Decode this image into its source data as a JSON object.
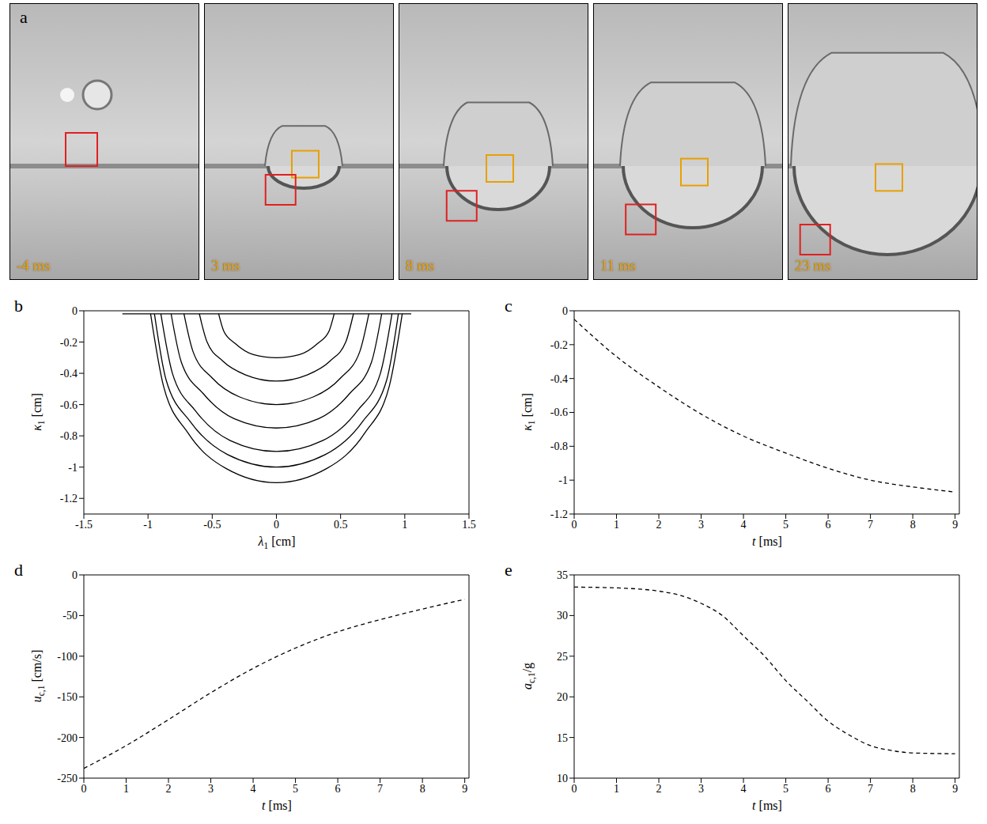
{
  "figure_a": {
    "panel": "a",
    "frames": [
      "-4 ms",
      "3 ms",
      "8 ms",
      "11 ms",
      "23 ms"
    ]
  },
  "chart_data": [
    {
      "panel": "b",
      "type": "line",
      "x_label": "λ1 [cm]",
      "y_label": "κ1 [cm]",
      "color": "#000000",
      "line_style": "solid",
      "xlim": [
        -1.5,
        1.5
      ],
      "xticks": [
        -1.5,
        -1,
        -0.5,
        0,
        0.5,
        1,
        1.5
      ],
      "ylim": [
        -1.3,
        0
      ],
      "yticks": [
        -1.2,
        -1,
        -0.8,
        -0.6,
        -0.4,
        -0.2,
        0
      ],
      "series": [
        {
          "x": [
            -1.2,
            1.05
          ],
          "values": [
            -0.02,
            -0.02
          ]
        },
        {
          "x": [
            -0.45,
            -0.41,
            -0.32,
            -0.18,
            0,
            0.18,
            0.32,
            0.41,
            0.45
          ],
          "values": [
            -0.02,
            -0.13,
            -0.21,
            -0.28,
            -0.3,
            -0.28,
            -0.21,
            -0.13,
            -0.02
          ]
        },
        {
          "x": [
            -0.6,
            -0.54,
            -0.42,
            -0.24,
            0,
            0.24,
            0.42,
            0.54,
            0.6
          ],
          "values": [
            -0.02,
            -0.2,
            -0.32,
            -0.41,
            -0.45,
            -0.41,
            -0.32,
            -0.2,
            -0.02
          ]
        },
        {
          "x": [
            -0.72,
            -0.65,
            -0.5,
            -0.29,
            0,
            0.29,
            0.5,
            0.65,
            0.72
          ],
          "values": [
            -0.02,
            -0.26,
            -0.43,
            -0.55,
            -0.6,
            -0.55,
            -0.43,
            -0.26,
            -0.02
          ]
        },
        {
          "x": [
            -0.82,
            -0.74,
            -0.57,
            -0.33,
            0,
            0.33,
            0.57,
            0.74,
            0.82
          ],
          "values": [
            -0.02,
            -0.33,
            -0.53,
            -0.69,
            -0.75,
            -0.69,
            -0.53,
            -0.33,
            -0.02
          ]
        },
        {
          "x": [
            -0.9,
            -0.81,
            -0.63,
            -0.36,
            0,
            0.36,
            0.63,
            0.81,
            0.9
          ],
          "values": [
            -0.02,
            -0.4,
            -0.64,
            -0.83,
            -0.9,
            -0.83,
            -0.64,
            -0.4,
            -0.02
          ]
        },
        {
          "x": [
            -0.95,
            -0.86,
            -0.67,
            -0.38,
            0,
            0.38,
            0.67,
            0.86,
            0.95
          ],
          "values": [
            -0.02,
            -0.44,
            -0.71,
            -0.92,
            -1.0,
            -0.92,
            -0.71,
            -0.44,
            -0.02
          ]
        },
        {
          "x": [
            -0.98,
            -0.88,
            -0.69,
            -0.39,
            0,
            0.39,
            0.69,
            0.88,
            0.98
          ],
          "values": [
            -0.02,
            -0.48,
            -0.78,
            -1.01,
            -1.1,
            -1.01,
            -0.78,
            -0.48,
            -0.02
          ]
        }
      ]
    },
    {
      "panel": "c",
      "type": "line",
      "x_label": "t [ms]",
      "y_label": "κ1 [cm]",
      "color": "#000000",
      "line_style": "dashed",
      "xlim": [
        0,
        9.1
      ],
      "xticks": [
        0,
        1,
        2,
        3,
        4,
        5,
        6,
        7,
        8,
        9
      ],
      "ylim": [
        -1.2,
        0
      ],
      "yticks": [
        -1.2,
        -1,
        -0.8,
        -0.6,
        -0.4,
        -0.2,
        0
      ],
      "x": [
        0,
        1,
        2,
        3,
        4,
        5,
        6,
        7,
        8,
        9
      ],
      "values": [
        -0.05,
        -0.27,
        -0.45,
        -0.61,
        -0.74,
        -0.84,
        -0.93,
        -1.0,
        -1.04,
        -1.07
      ]
    },
    {
      "panel": "d",
      "type": "line",
      "x_label": "t [ms]",
      "y_label": "uc,1 [cm/s]",
      "color": "#000000",
      "line_style": "dashed",
      "xlim": [
        0,
        9.1
      ],
      "xticks": [
        0,
        1,
        2,
        3,
        4,
        5,
        6,
        7,
        8,
        9
      ],
      "ylim": [
        -250,
        0
      ],
      "yticks": [
        -250,
        -200,
        -150,
        -100,
        -50,
        0
      ],
      "x": [
        0,
        1,
        2,
        3,
        4,
        5,
        6,
        7,
        8,
        9
      ],
      "values": [
        -238,
        -210,
        -178,
        -145,
        -115,
        -90,
        -70,
        -55,
        -42,
        -30
      ]
    },
    {
      "panel": "e",
      "type": "line",
      "x_label": "t [ms]",
      "y_label": "ac,1/g",
      "color": "#000000",
      "line_style": "dashed",
      "xlim": [
        0,
        9.1
      ],
      "xticks": [
        0,
        1,
        2,
        3,
        4,
        5,
        6,
        7,
        8,
        9
      ],
      "ylim": [
        10,
        35
      ],
      "yticks": [
        10,
        15,
        20,
        25,
        30,
        35
      ],
      "x": [
        0,
        1,
        2,
        2.5,
        3,
        3.5,
        4,
        4.5,
        5,
        5.5,
        6,
        6.5,
        7,
        7.5,
        8,
        9
      ],
      "values": [
        33.5,
        33.4,
        33.0,
        32.5,
        31.5,
        30,
        27.5,
        25,
        22,
        19.5,
        17,
        15.3,
        14,
        13.4,
        13.1,
        13.0
      ]
    }
  ]
}
